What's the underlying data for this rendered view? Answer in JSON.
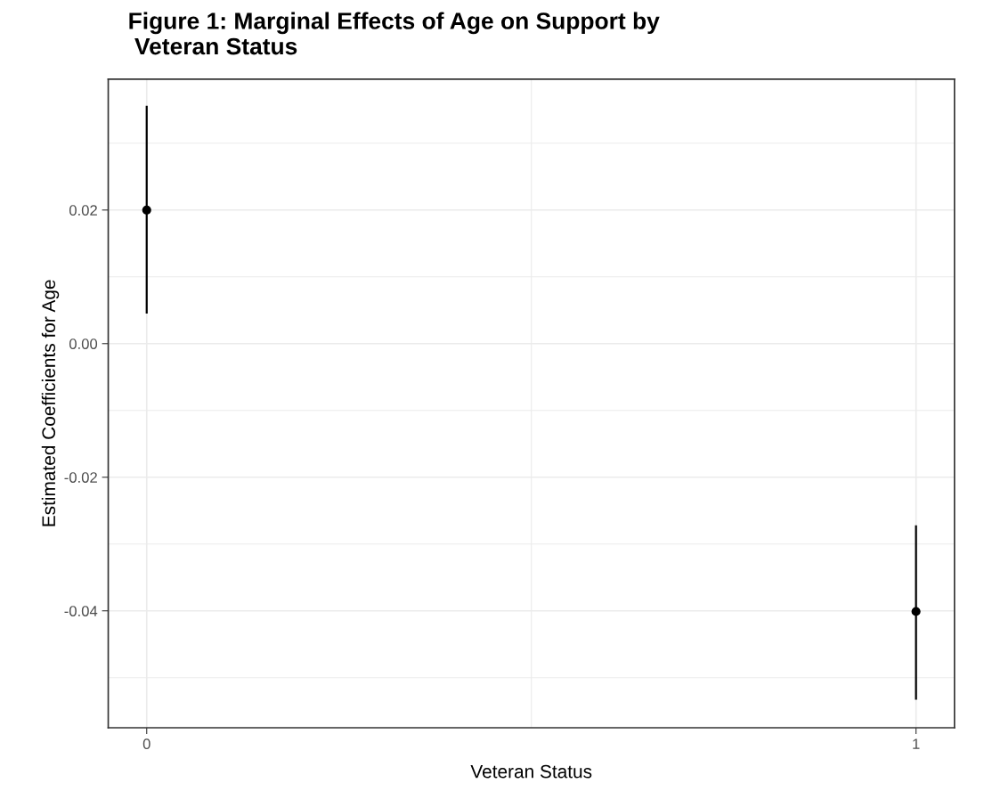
{
  "chart_data": {
    "type": "scatter",
    "title": "Figure 1: Marginal Effects of Age on Support by\n Veteran Status",
    "xlabel": "Veteran Status",
    "ylabel": "Estimated Coefficients for Age",
    "x": [
      0,
      1
    ],
    "values": [
      0.02,
      -0.0401
    ],
    "errors": [
      [
        0.0045,
        0.0356
      ],
      [
        -0.0533,
        -0.0272
      ]
    ],
    "color": "#000000",
    "marker": "circle",
    "xlim": [
      -0.05,
      1.05
    ],
    "xticks": [
      0,
      1
    ],
    "ylim": [
      -0.0575,
      0.0396
    ],
    "yticks": [
      {
        "value": -0.04,
        "label": "-0.04"
      },
      {
        "value": -0.02,
        "label": "-0.02"
      },
      {
        "value": 0,
        "label": "0.00"
      },
      {
        "value": 0.02,
        "label": "0.02"
      }
    ],
    "grid": true
  }
}
